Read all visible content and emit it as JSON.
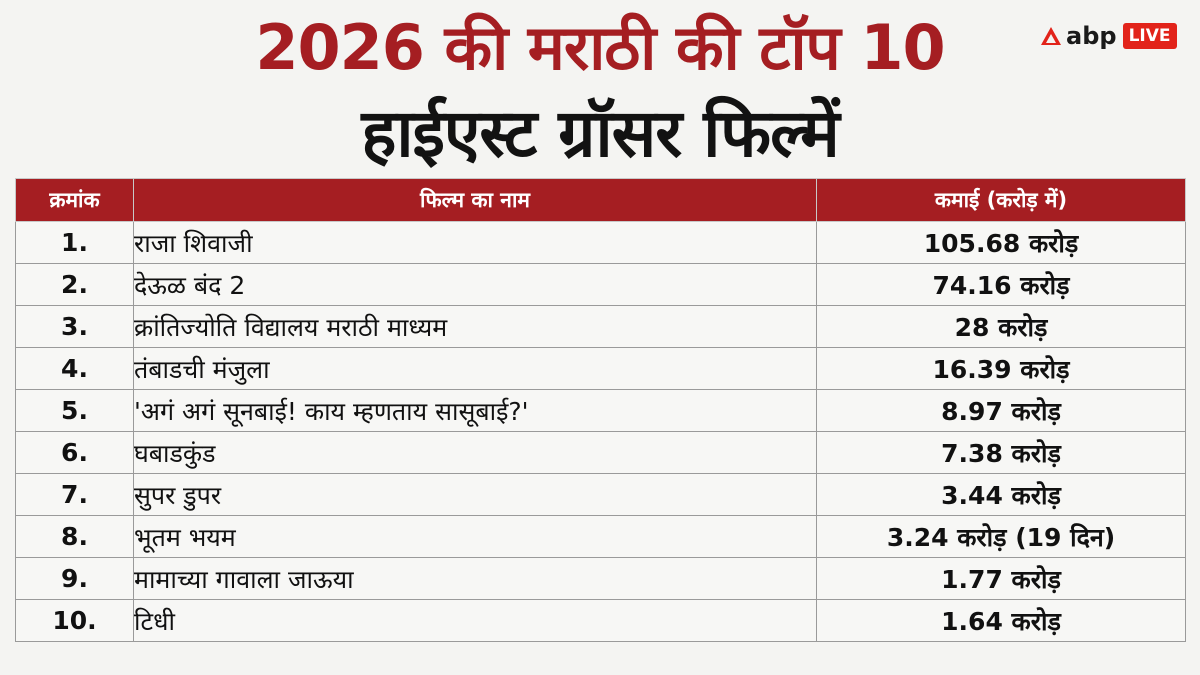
{
  "title": {
    "line1": "2026 की मराठी की टॉप 10",
    "line2": "हाईएस्ट ग्रॉसर फिल्में"
  },
  "logo": {
    "text": "abp",
    "live": "LIVE",
    "accent": "#e2231a"
  },
  "table": {
    "headers": {
      "rank": "क्रमांक",
      "name": "फिल्म का नाम",
      "earnings": "कमाई (करोड़ में)"
    },
    "rows": [
      {
        "rank": "1.",
        "name": "राजा शिवाजी",
        "earnings": "105.68 करोड़"
      },
      {
        "rank": "2.",
        "name": "देऊळ बंद 2",
        "earnings": "74.16 करोड़"
      },
      {
        "rank": "3.",
        "name": "क्रांतिज्योति विद्यालय मराठी माध्यम",
        "earnings": "28 करोड़"
      },
      {
        "rank": "4.",
        "name": "तंबाडची मंजुला",
        "earnings": "16.39 करोड़"
      },
      {
        "rank": "5.",
        "name": "'अगं अगं सूनबाई! काय म्हणताय सासूबाई?'",
        "earnings": "8.97 करोड़"
      },
      {
        "rank": "6.",
        "name": "घबाडकुंड",
        "earnings": "7.38 करोड़"
      },
      {
        "rank": "7.",
        "name": "सुपर डुपर",
        "earnings": "3.44 करोड़"
      },
      {
        "rank": "8.",
        "name": "भूतम भयम",
        "earnings": "3.24 करोड़ (19 दिन)"
      },
      {
        "rank": "9.",
        "name": "मामाच्या गावाला जाऊया",
        "earnings": "1.77 करोड़"
      },
      {
        "rank": "10.",
        "name": "टिधी",
        "earnings": "1.64 करोड़"
      }
    ]
  },
  "colors": {
    "header_bg": "#a51e22",
    "title_red": "#a51e22",
    "title_dark": "#121212"
  }
}
